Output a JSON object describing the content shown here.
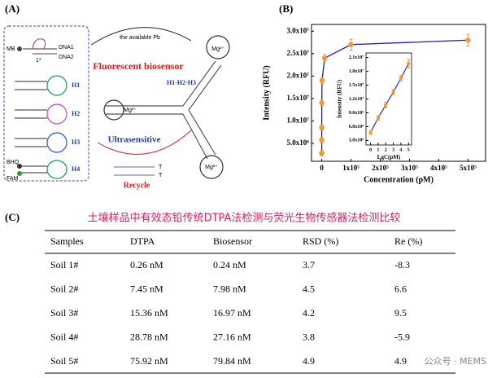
{
  "diagram": {
    "label": "(A)",
    "mb": "MB",
    "dna1": "DNA1",
    "dna2": "DNA2",
    "domain_1star": "1*",
    "hairpins": [
      "H1",
      "H2",
      "H3",
      "H4"
    ],
    "bhq": "BHQ",
    "fam": "FAM",
    "top_arrow": "the available Pb",
    "title": "Fluorescent biosensor",
    "complex": "H1-H2-H3",
    "mg": "Mg²⁺",
    "ultrasensitive": "Ultrasensitive",
    "t": "T",
    "recycle": "Recycle"
  },
  "chart_label": "(B)",
  "chart_data": [
    {
      "type": "line",
      "xlabel": "Concentration (pM)",
      "ylabel": "Intensity (RFU)",
      "x": [
        0,
        1,
        10,
        100,
        1000,
        10000,
        100000,
        500000
      ],
      "series": [
        {
          "values": [
            2800000,
            5700000,
            8500000,
            14000000,
            19000000,
            24000000,
            27000000,
            28000000
          ],
          "errors": [
            600000,
            600000,
            600000,
            600000,
            700000,
            800000,
            1200000,
            1300000
          ],
          "color": "#f09a30",
          "line_color": "#1c1ca8"
        }
      ],
      "xlim": [
        -35000,
        560000
      ],
      "ylim": [
        1000000,
        31500000
      ],
      "xticks": [
        0,
        {
          "value": 100000,
          "label": "1x10⁵"
        },
        {
          "value": 200000,
          "label": "2x10⁵"
        },
        {
          "value": 300000,
          "label": "3x10⁵"
        },
        {
          "value": 400000,
          "label": "4x10⁵"
        },
        {
          "value": 500000,
          "label": "5x10⁵"
        }
      ],
      "yticks": [
        {
          "value": 5000000,
          "label": "5.0x10⁶"
        },
        {
          "value": 10000000,
          "label": "1.0x10⁷"
        },
        {
          "value": 15000000,
          "label": "1.5x10⁷"
        },
        {
          "value": 20000000,
          "label": "2.0x10⁷"
        },
        {
          "value": 25000000,
          "label": "2.5x10⁷"
        },
        {
          "value": 30000000,
          "label": "3.0x10⁷"
        }
      ]
    },
    {
      "type": "line",
      "xlabel": "LgC(pM)",
      "ylabel": "Intensity (RFU)",
      "x": [
        0,
        1,
        2,
        3,
        4,
        5
      ],
      "series": [
        {
          "values": [
            4700000,
            7900000,
            10700000,
            13500000,
            16500000,
            19700000
          ],
          "errors": [
            400000,
            500000,
            600000,
            600000,
            600000,
            900000
          ],
          "color": "#f09a30",
          "line_color": "#1c1ca8"
        }
      ],
      "xlim": [
        -0.6,
        5.4
      ],
      "ylim": [
        2000000,
        22000000
      ],
      "xticks": [
        0,
        1,
        2,
        3,
        4,
        5
      ],
      "yticks": [
        {
          "value": 3000000,
          "label": "3.0x10⁶"
        },
        {
          "value": 6000000,
          "label": "6.0x10⁶"
        },
        {
          "value": 9000000,
          "label": "9.0x10⁶"
        },
        {
          "value": 12000000,
          "label": "1.2x10⁷"
        },
        {
          "value": 15000000,
          "label": "1.5x10⁷"
        },
        {
          "value": 18000000,
          "label": "1.8x10⁷"
        },
        {
          "value": 21000000,
          "label": "2.1x10⁷"
        }
      ]
    }
  ],
  "table": {
    "label": "(C)",
    "title": "土壤样品中有效态铅传统DTPA法检测与荧光生物传感器法检测比较",
    "header": [
      "Samples",
      "DTPA",
      "Biosensor",
      "RSD (%)",
      "Re (%)"
    ],
    "rows": [
      [
        "Soil 1#",
        "0.26 nM",
        "0.24 nM",
        "3.7",
        "-8.3"
      ],
      [
        "Soil 2#",
        "7.45 nM",
        "7.98 nM",
        "4.5",
        "6.6"
      ],
      [
        "Soil 3#",
        "15.36 nM",
        "16.97 nM",
        "4.2",
        "9.5"
      ],
      [
        "Soil 4#",
        "28.78 nM",
        "27.16 nM",
        "3.8",
        "-5.9"
      ],
      [
        "Soil 5#",
        "75.92 nM",
        "79.84 nM",
        "4.9",
        "4.9"
      ]
    ]
  },
  "watermark": "公众号 · MEMS"
}
